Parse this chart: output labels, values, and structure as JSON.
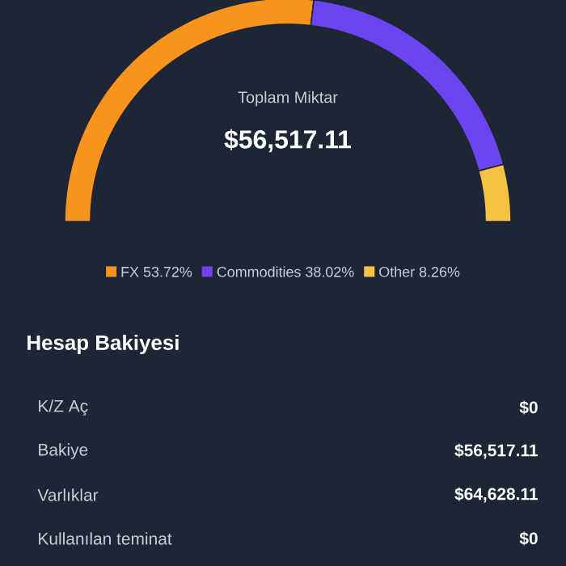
{
  "chart_data": [
    {
      "type": "donut",
      "categories": [
        "FX",
        "Commodities",
        "Other"
      ],
      "values": [
        53.72,
        38.02,
        8.26
      ],
      "colors": [
        "#f7941d",
        "#6a45f0",
        "#f5c342"
      ],
      "value_labels": [
        "53.72%",
        "38.02%",
        "8.26%"
      ],
      "legend": "bottom",
      "annotations": [
        "Toplam Miktar",
        "$56,517.11"
      ]
    },
    {
      "type": "other",
      "title": "Hesap Bakiyesi",
      "categories": [
        "K/Z Aç",
        "Bakiye",
        "Varlıklar",
        "Kullanılan teminat"
      ],
      "value_labels": [
        "$0",
        "$56,517.11",
        "$64,628.11",
        "$0"
      ]
    }
  ]
}
